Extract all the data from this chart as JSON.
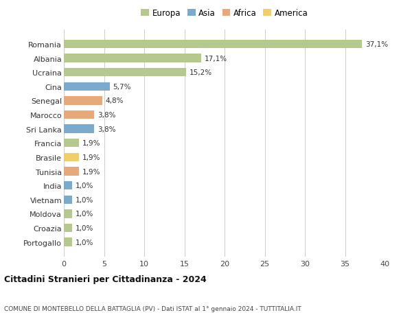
{
  "countries": [
    "Romania",
    "Albania",
    "Ucraina",
    "Cina",
    "Senegal",
    "Marocco",
    "Sri Lanka",
    "Francia",
    "Brasile",
    "Tunisia",
    "India",
    "Vietnam",
    "Moldova",
    "Croazia",
    "Portogallo"
  ],
  "values": [
    37.1,
    17.1,
    15.2,
    5.7,
    4.8,
    3.8,
    3.8,
    1.9,
    1.9,
    1.9,
    1.0,
    1.0,
    1.0,
    1.0,
    1.0
  ],
  "labels": [
    "37,1%",
    "17,1%",
    "15,2%",
    "5,7%",
    "4,8%",
    "3,8%",
    "3,8%",
    "1,9%",
    "1,9%",
    "1,9%",
    "1,0%",
    "1,0%",
    "1,0%",
    "1,0%",
    "1,0%"
  ],
  "continents": [
    "Europa",
    "Europa",
    "Europa",
    "Asia",
    "Africa",
    "Africa",
    "Asia",
    "Europa",
    "America",
    "Africa",
    "Asia",
    "Asia",
    "Europa",
    "Europa",
    "Europa"
  ],
  "colors": {
    "Europa": "#b5c98e",
    "Asia": "#7aabcf",
    "Africa": "#e8a97a",
    "America": "#f0cf6a"
  },
  "xlim": [
    0,
    40
  ],
  "xticks": [
    0,
    5,
    10,
    15,
    20,
    25,
    30,
    35,
    40
  ],
  "title": "Cittadini Stranieri per Cittadinanza - 2024",
  "subtitle": "COMUNE DI MONTEBELLO DELLA BATTAGLIA (PV) - Dati ISTAT al 1° gennaio 2024 - TUTTITALIA.IT",
  "background_color": "#ffffff",
  "grid_color": "#cccccc"
}
